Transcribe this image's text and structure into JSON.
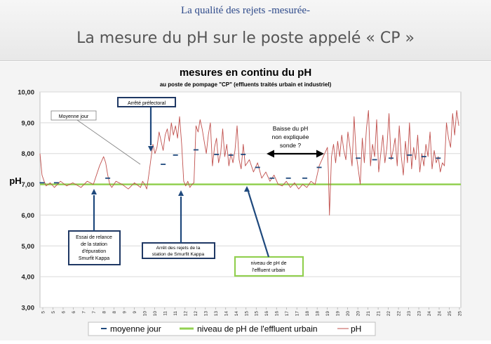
{
  "slide": {
    "subtitle": "La qualité des rejets -mesurée-",
    "title": "La mesure du pH sur le poste appelé « CP »"
  },
  "chart_data": {
    "type": "line",
    "title": "mesures en continu du pH",
    "subtitle": "au poste de pompage \"CP\" (effluents traités urbain et industriel)",
    "ylabel": "pH",
    "ylim": [
      3,
      10
    ],
    "y_ticks": [
      "3,00",
      "4,00",
      "5,00",
      "6,00",
      "7,00",
      "8,00",
      "9,00",
      "10,00"
    ],
    "xlim": [
      5,
      25.5
    ],
    "x_ticks": [
      "5",
      "5",
      "6",
      "6",
      "7",
      "7",
      "8",
      "8",
      "9",
      "9",
      "10",
      "10",
      "11",
      "11",
      "12",
      "12",
      "13",
      "13",
      "14",
      "14",
      "15",
      "15",
      "16",
      "16",
      "17",
      "17",
      "18",
      "18",
      "19",
      "19",
      "20",
      "20",
      "21",
      "21",
      "22",
      "22",
      "23",
      "23",
      "24",
      "24",
      "25",
      "25"
    ],
    "grid": true,
    "legend_position": "bottom",
    "colors": {
      "ph": "#c0504d",
      "mean": "#1f497d",
      "reference": "#92d050",
      "annotation_border": "#1f3864",
      "arrow": "#1f497d"
    },
    "series": [
      {
        "name": "pH",
        "style": "thin-line",
        "x": [
          5.0,
          5.1,
          5.2,
          5.3,
          5.5,
          5.7,
          6.0,
          6.3,
          6.6,
          7.0,
          7.3,
          7.6,
          7.9,
          8.1,
          8.2,
          8.3,
          8.4,
          8.5,
          8.7,
          9.0,
          9.3,
          9.6,
          9.9,
          10.0,
          10.1,
          10.2,
          10.3,
          10.4,
          10.5,
          10.6,
          10.7,
          10.8,
          10.9,
          11.0,
          11.1,
          11.2,
          11.3,
          11.4,
          11.5,
          11.6,
          11.7,
          11.8,
          11.9,
          12.0,
          12.1,
          12.2,
          12.3,
          12.4,
          12.5,
          12.6,
          12.7,
          12.8,
          12.9,
          13.0,
          13.1,
          13.2,
          13.3,
          13.4,
          13.5,
          13.6,
          13.7,
          13.8,
          13.9,
          14.0,
          14.1,
          14.2,
          14.3,
          14.4,
          14.5,
          14.6,
          14.7,
          14.8,
          14.9,
          15.0,
          15.2,
          15.4,
          15.6,
          15.8,
          16.0,
          16.2,
          16.4,
          16.6,
          16.8,
          17.0,
          17.2,
          17.4,
          17.6,
          17.8,
          18.0,
          18.2,
          18.4,
          18.6,
          18.8,
          19.0,
          19.05,
          19.1,
          19.2,
          19.3,
          19.4,
          19.5,
          19.6,
          19.7,
          19.8,
          19.9,
          20.0,
          20.1,
          20.2,
          20.3,
          20.4,
          20.5,
          20.6,
          20.7,
          20.8,
          20.9,
          21.0,
          21.1,
          21.2,
          21.3,
          21.4,
          21.5,
          21.6,
          21.7,
          21.8,
          21.9,
          22.0,
          22.1,
          22.2,
          22.3,
          22.4,
          22.5,
          22.6,
          22.7,
          22.8,
          22.9,
          23.0,
          23.1,
          23.2,
          23.3,
          23.4,
          23.5,
          23.6,
          23.7,
          23.8,
          23.9,
          24.0,
          24.1,
          24.2,
          24.3,
          24.4,
          24.5,
          24.6,
          24.7,
          24.8,
          24.9,
          25.0,
          25.1,
          25.2,
          25.3,
          25.4
        ],
        "values": [
          8.0,
          7.3,
          7.1,
          6.95,
          7.05,
          6.9,
          7.1,
          6.95,
          7.05,
          6.9,
          7.1,
          7.0,
          7.6,
          7.9,
          7.7,
          7.3,
          7.0,
          6.9,
          7.1,
          7.0,
          6.85,
          7.05,
          6.9,
          7.1,
          7.0,
          6.85,
          7.3,
          7.8,
          8.3,
          8.0,
          8.2,
          8.7,
          8.4,
          8.1,
          8.6,
          8.8,
          8.4,
          9.0,
          8.6,
          8.9,
          8.5,
          9.2,
          8.3,
          7.1,
          6.95,
          7.1,
          6.9,
          7.0,
          7.05,
          8.9,
          8.7,
          9.1,
          8.8,
          8.4,
          8.0,
          8.6,
          9.0,
          7.6,
          8.2,
          8.5,
          7.7,
          8.0,
          8.8,
          7.9,
          8.3,
          7.6,
          8.0,
          7.7,
          8.1,
          8.9,
          7.8,
          7.5,
          8.3,
          7.6,
          7.8,
          7.4,
          7.7,
          7.2,
          7.4,
          7.1,
          7.3,
          7.0,
          6.95,
          7.1,
          6.9,
          7.05,
          6.85,
          7.0,
          6.9,
          7.1,
          7.0,
          7.6,
          7.9,
          8.2,
          7.4,
          6.0,
          7.9,
          8.3,
          7.7,
          8.4,
          7.9,
          8.6,
          8.1,
          7.8,
          8.7,
          8.2,
          7.6,
          9.2,
          8.0,
          7.5,
          7.0,
          8.5,
          7.7,
          8.8,
          9.4,
          7.6,
          8.3,
          7.9,
          9.1,
          7.4,
          8.0,
          8.6,
          7.7,
          8.2,
          9.3,
          7.8,
          8.1,
          8.5,
          7.6,
          8.9,
          7.9,
          7.3,
          8.4,
          7.7,
          9.0,
          7.5,
          8.2,
          7.8,
          8.6,
          7.4,
          8.0,
          7.6,
          8.3,
          7.9,
          8.7,
          7.5,
          8.1,
          7.7,
          7.9,
          7.4,
          7.7,
          7.6,
          9.0,
          8.5,
          8.2,
          9.3,
          8.6,
          9.4,
          8.9
        ]
      },
      {
        "name": "moyenne jour",
        "style": "dashes",
        "x": [
          5.1,
          5.8,
          8.3,
          11.0,
          11.6,
          12.6,
          13.6,
          14.3,
          14.9,
          15.6,
          16.3,
          17.1,
          17.9,
          18.6,
          20.5,
          21.3,
          22.1,
          23.0,
          23.7,
          24.4
        ],
        "values": [
          7.05,
          7.05,
          7.2,
          7.65,
          7.95,
          8.12,
          7.97,
          7.95,
          7.97,
          7.55,
          7.2,
          7.2,
          7.2,
          7.55,
          7.85,
          7.8,
          7.85,
          7.95,
          7.9,
          7.85
        ]
      },
      {
        "name": "niveau de pH de l'effluent urbain",
        "style": "thick-line",
        "x": [
          5.0,
          25.5
        ],
        "values": [
          7.0,
          7.0
        ]
      }
    ],
    "annotations": [
      {
        "text": "Moyenne jour"
      },
      {
        "text": "Arrêté préfectoral"
      },
      {
        "text": "Baisse du pH\nnon expliquée\nsonde ?"
      },
      {
        "text": "Essai de relance\nde la station\nd'épuration\nSmurfit Kappa"
      },
      {
        "text": "Arrêt des rejets de la\nstation de Smurfit Kappa"
      },
      {
        "text": "niveau de pH de\nl'effluent urbain"
      }
    ],
    "legend": [
      "moyenne jour",
      "niveau de pH de l'effluent urbain",
      "pH"
    ]
  }
}
